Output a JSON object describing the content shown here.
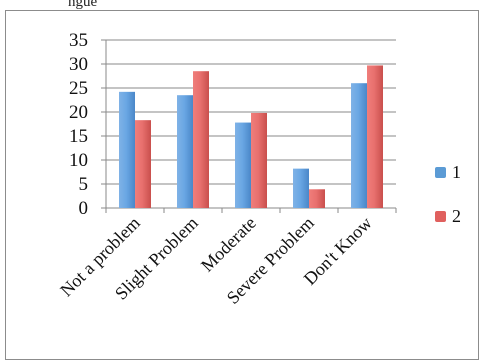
{
  "header": {
    "fragment_text": "ngue"
  },
  "chart_data": {
    "type": "bar",
    "categories": [
      "Not a problem",
      "Slight Problem",
      "Moderate",
      "Severe Problem",
      "Don't Know"
    ],
    "series": [
      {
        "name": "1",
        "values": [
          24.2,
          23.5,
          17.8,
          8.2,
          26.0
        ],
        "color": "#5b9bd5"
      },
      {
        "name": "2",
        "values": [
          18.3,
          28.5,
          19.8,
          3.9,
          29.7
        ],
        "color": "#e0605e"
      }
    ],
    "yticks": [
      0,
      5,
      10,
      15,
      20,
      25,
      30,
      35
    ],
    "ylim": [
      0,
      35
    ],
    "grid": true,
    "legend_position": "right",
    "title": "",
    "xlabel": "",
    "ylabel": ""
  }
}
